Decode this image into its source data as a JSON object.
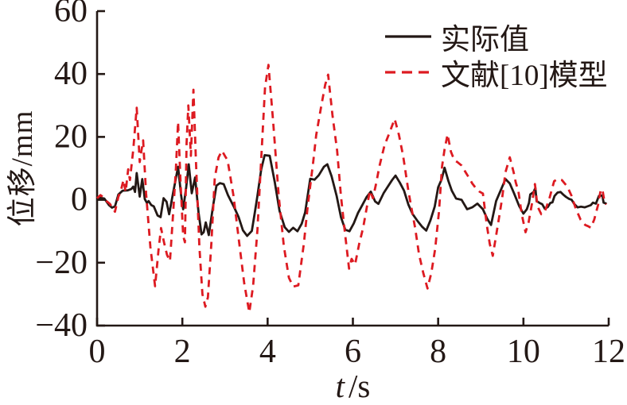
{
  "figure": {
    "background": "#ffffff",
    "axis_color": "#231815",
    "text_color": "#231815"
  },
  "chart_data": {
    "type": "line",
    "title": "",
    "xlabel": "t/s",
    "xlabel_var": "t",
    "xlabel_unit": "/s",
    "ylabel": "位移/mm",
    "xlim": [
      0,
      12
    ],
    "ylim": [
      -40,
      60
    ],
    "x_ticks": [
      0,
      2,
      4,
      6,
      8,
      10,
      12
    ],
    "y_ticks": [
      -40,
      -20,
      0,
      20,
      40,
      60
    ],
    "grid": false,
    "legend_position": "top-right",
    "series": [
      {
        "name": "实际值",
        "color": "#231815",
        "style": "solid",
        "points": [
          [
            0,
            0
          ],
          [
            0.08,
            0.6
          ],
          [
            0.17,
            0.4
          ],
          [
            0.28,
            -1.7
          ],
          [
            0.35,
            -2.5
          ],
          [
            0.42,
            -2.1
          ],
          [
            0.5,
            1.7
          ],
          [
            0.6,
            2.9
          ],
          [
            0.72,
            3
          ],
          [
            0.8,
            3.4
          ],
          [
            0.85,
            4.2
          ],
          [
            0.89,
            2.5
          ],
          [
            0.93,
            8.5
          ],
          [
            1,
            1
          ],
          [
            1.06,
            6.6
          ],
          [
            1.12,
            0.2
          ],
          [
            1.17,
            -1
          ],
          [
            1.21,
            -0.4
          ],
          [
            1.27,
            -1.7
          ],
          [
            1.33,
            -2.1
          ],
          [
            1.42,
            -5
          ],
          [
            1.49,
            -5.5
          ],
          [
            1.56,
            0.5
          ],
          [
            1.63,
            -0.6
          ],
          [
            1.69,
            -4.6
          ],
          [
            1.78,
            2
          ],
          [
            1.9,
            10.5
          ],
          [
            1.97,
            1.5
          ],
          [
            2.02,
            -3
          ],
          [
            2.09,
            4
          ],
          [
            2.15,
            11.3
          ],
          [
            2.22,
            2.1
          ],
          [
            2.3,
            7.1
          ],
          [
            2.38,
            -4
          ],
          [
            2.45,
            -11
          ],
          [
            2.5,
            -10.3
          ],
          [
            2.55,
            -7.2
          ],
          [
            2.62,
            -11.2
          ],
          [
            2.72,
            -2.1
          ],
          [
            2.8,
            4.5
          ],
          [
            2.88,
            5.3
          ],
          [
            2.97,
            5
          ],
          [
            3.07,
            1.5
          ],
          [
            3.14,
            -0.4
          ],
          [
            3.22,
            -2.5
          ],
          [
            3.32,
            -5.5
          ],
          [
            3.42,
            -9.7
          ],
          [
            3.52,
            -11.5
          ],
          [
            3.63,
            -9.9
          ],
          [
            3.7,
            -4
          ],
          [
            3.76,
            1.2
          ],
          [
            3.85,
            9.7
          ],
          [
            3.93,
            14.2
          ],
          [
            4.05,
            14
          ],
          [
            4.17,
            5.5
          ],
          [
            4.28,
            -3.5
          ],
          [
            4.4,
            -8.7
          ],
          [
            4.5,
            -10.2
          ],
          [
            4.6,
            -8.9
          ],
          [
            4.7,
            -10
          ],
          [
            4.8,
            -7.6
          ],
          [
            4.88,
            -4
          ],
          [
            5,
            6.7
          ],
          [
            5.1,
            6.4
          ],
          [
            5.2,
            7.8
          ],
          [
            5.32,
            10.5
          ],
          [
            5.4,
            11.3
          ],
          [
            5.5,
            7.5
          ],
          [
            5.62,
            1.2
          ],
          [
            5.72,
            -5.5
          ],
          [
            5.82,
            -9.5
          ],
          [
            5.92,
            -10
          ],
          [
            6.02,
            -7.5
          ],
          [
            6.12,
            -4.2
          ],
          [
            6.22,
            -1.7
          ],
          [
            6.32,
            0.8
          ],
          [
            6.42,
            2.6
          ],
          [
            6.52,
            -0.5
          ],
          [
            6.6,
            -1.3
          ],
          [
            6.72,
            2.1
          ],
          [
            6.82,
            4.2
          ],
          [
            6.92,
            6.3
          ],
          [
            7,
            7.7
          ],
          [
            7.1,
            5.5
          ],
          [
            7.2,
            2.9
          ],
          [
            7.3,
            -1.5
          ],
          [
            7.4,
            -4.5
          ],
          [
            7.52,
            -6.8
          ],
          [
            7.62,
            -8.5
          ],
          [
            7.72,
            -9.8
          ],
          [
            7.82,
            -6.5
          ],
          [
            7.92,
            -2.1
          ],
          [
            8,
            4
          ],
          [
            8.08,
            6.5
          ],
          [
            8.15,
            10.2
          ],
          [
            8.24,
            6
          ],
          [
            8.32,
            2.9
          ],
          [
            8.42,
            0.4
          ],
          [
            8.55,
            0
          ],
          [
            8.68,
            -3
          ],
          [
            8.8,
            -2.4
          ],
          [
            8.92,
            -1.2
          ],
          [
            9.05,
            -3
          ],
          [
            9.15,
            -6
          ],
          [
            9.24,
            -8
          ],
          [
            9.36,
            -0.4
          ],
          [
            9.45,
            2.5
          ],
          [
            9.58,
            6.6
          ],
          [
            9.68,
            5.2
          ],
          [
            9.78,
            2.1
          ],
          [
            9.9,
            -2
          ],
          [
            10,
            -4.4
          ],
          [
            10.08,
            -3
          ],
          [
            10.13,
            -1
          ],
          [
            10.16,
            1.7
          ],
          [
            10.24,
            2.5
          ],
          [
            10.28,
            3.8
          ],
          [
            10.31,
            -0.4
          ],
          [
            10.38,
            -1
          ],
          [
            10.44,
            -1.4
          ],
          [
            10.5,
            -2.8
          ],
          [
            10.57,
            -2.3
          ],
          [
            10.63,
            -1
          ],
          [
            10.68,
            -0.8
          ],
          [
            10.73,
            1.2
          ],
          [
            10.8,
            2.3
          ],
          [
            10.87,
            2.5
          ],
          [
            10.93,
            1.7
          ],
          [
            11,
            0.9
          ],
          [
            11.07,
            0.3
          ],
          [
            11.13,
            0
          ],
          [
            11.19,
            -1.3
          ],
          [
            11.27,
            -2.4
          ],
          [
            11.35,
            -2.2
          ],
          [
            11.44,
            -2.4
          ],
          [
            11.52,
            -2
          ],
          [
            11.58,
            -1.7
          ],
          [
            11.63,
            -0.9
          ],
          [
            11.7,
            -1.2
          ],
          [
            11.77,
            1.2
          ],
          [
            11.85,
            1.4
          ],
          [
            11.88,
            -0.9
          ],
          [
            11.95,
            -1.2
          ]
        ]
      },
      {
        "name": "文献[10]模型",
        "color": "#dd1a21",
        "style": "dashed",
        "points": [
          [
            0,
            0.5
          ],
          [
            0.08,
            1.5
          ],
          [
            0.15,
            0.8
          ],
          [
            0.22,
            -0.4
          ],
          [
            0.3,
            -1.3
          ],
          [
            0.42,
            -3.8
          ],
          [
            0.5,
            1
          ],
          [
            0.55,
            2.5
          ],
          [
            0.62,
            6.3
          ],
          [
            0.67,
            2.5
          ],
          [
            0.73,
            9.7
          ],
          [
            0.77,
            6.3
          ],
          [
            0.85,
            16
          ],
          [
            0.93,
            29.3
          ],
          [
            1,
            12
          ],
          [
            1.04,
            15.5
          ],
          [
            1.08,
            18.9
          ],
          [
            1.15,
            2
          ],
          [
            1.25,
            -15
          ],
          [
            1.36,
            -27.5
          ],
          [
            1.44,
            -16
          ],
          [
            1.5,
            -9
          ],
          [
            1.57,
            -13.5
          ],
          [
            1.64,
            -17.5
          ],
          [
            1.71,
            -19.5
          ],
          [
            1.78,
            -5
          ],
          [
            1.85,
            10
          ],
          [
            1.9,
            24.8
          ],
          [
            1.96,
            5
          ],
          [
            2.02,
            -11.5
          ],
          [
            2.06,
            -13.5
          ],
          [
            2.1,
            18
          ],
          [
            2.14,
            30
          ],
          [
            2.2,
            14
          ],
          [
            2.26,
            35
          ],
          [
            2.32,
            12
          ],
          [
            2.4,
            -15
          ],
          [
            2.47,
            -30
          ],
          [
            2.54,
            -34
          ],
          [
            2.6,
            -31
          ],
          [
            2.68,
            -14
          ],
          [
            2.76,
            7
          ],
          [
            2.85,
            13.5
          ],
          [
            2.93,
            15.6
          ],
          [
            3,
            13.9
          ],
          [
            3.06,
            12.6
          ],
          [
            3.2,
            1.2
          ],
          [
            3.32,
            -12.2
          ],
          [
            3.45,
            -26.5
          ],
          [
            3.57,
            -35.8
          ],
          [
            3.66,
            -27.4
          ],
          [
            3.76,
            -9.7
          ],
          [
            3.85,
            13
          ],
          [
            3.94,
            35.8
          ],
          [
            4.02,
            42.9
          ],
          [
            4.13,
            24.8
          ],
          [
            4.26,
            1.2
          ],
          [
            4.38,
            -14.7
          ],
          [
            4.5,
            -24.8
          ],
          [
            4.6,
            -27.6
          ],
          [
            4.72,
            -27.2
          ],
          [
            4.85,
            -13.9
          ],
          [
            4.94,
            -2.1
          ],
          [
            5.07,
            12.2
          ],
          [
            5.14,
            20.6
          ],
          [
            5.26,
            29.9
          ],
          [
            5.35,
            36.6
          ],
          [
            5.42,
            39.8
          ],
          [
            5.52,
            27
          ],
          [
            5.63,
            15.6
          ],
          [
            5.72,
            1.2
          ],
          [
            5.8,
            -8.9
          ],
          [
            5.91,
            -21.9
          ],
          [
            5.97,
            -18.8
          ],
          [
            6.05,
            -20.6
          ],
          [
            6.15,
            -13.9
          ],
          [
            6.24,
            -8.9
          ],
          [
            6.33,
            -2.1
          ],
          [
            6.4,
            2.9
          ],
          [
            6.47,
            0.5
          ],
          [
            6.55,
            5.5
          ],
          [
            6.62,
            10.5
          ],
          [
            6.74,
            17.3
          ],
          [
            6.86,
            21.4
          ],
          [
            6.98,
            25.7
          ],
          [
            7.08,
            20.6
          ],
          [
            7.18,
            13.9
          ],
          [
            7.3,
            2.9
          ],
          [
            7.38,
            -3
          ],
          [
            7.46,
            -8.9
          ],
          [
            7.55,
            -17.3
          ],
          [
            7.65,
            -23.2
          ],
          [
            7.75,
            -28.2
          ],
          [
            7.84,
            -23.2
          ],
          [
            7.93,
            -15.6
          ],
          [
            8.02,
            -3.8
          ],
          [
            8.09,
            10.5
          ],
          [
            8.15,
            16
          ],
          [
            8.22,
            20.8
          ],
          [
            8.3,
            15.3
          ],
          [
            8.38,
            12.6
          ],
          [
            8.45,
            12
          ],
          [
            8.55,
            10.9
          ],
          [
            8.65,
            8.6
          ],
          [
            8.72,
            7.1
          ],
          [
            8.8,
            5.2
          ],
          [
            8.88,
            3.8
          ],
          [
            8.97,
            2.6
          ],
          [
            9.05,
            2
          ],
          [
            9.14,
            -8
          ],
          [
            9.21,
            -14
          ],
          [
            9.28,
            -17.8
          ],
          [
            9.36,
            -11.4
          ],
          [
            9.45,
            -3.8
          ],
          [
            9.5,
            0.4
          ],
          [
            9.58,
            8.8
          ],
          [
            9.68,
            13.5
          ],
          [
            9.77,
            8.8
          ],
          [
            9.82,
            5.5
          ],
          [
            9.88,
            2.9
          ],
          [
            9.96,
            -4.6
          ],
          [
            10.05,
            -10.3
          ],
          [
            10.12,
            -7.2
          ],
          [
            10.2,
            -1.3
          ],
          [
            10.27,
            5
          ],
          [
            10.33,
            -2.1
          ],
          [
            10.42,
            -4.6
          ],
          [
            10.5,
            -3.8
          ],
          [
            10.6,
            0
          ],
          [
            10.72,
            5.9
          ],
          [
            10.8,
            6.6
          ],
          [
            10.9,
            6.3
          ],
          [
            11.03,
            4.2
          ],
          [
            11.13,
            1.2
          ],
          [
            11.22,
            -2.5
          ],
          [
            11.34,
            -6.3
          ],
          [
            11.45,
            -8
          ],
          [
            11.52,
            -8.4
          ],
          [
            11.58,
            -8.9
          ],
          [
            11.66,
            -6.3
          ],
          [
            11.75,
            -1.7
          ],
          [
            11.81,
            2.9
          ],
          [
            11.85,
            3.4
          ],
          [
            11.9,
            -0.5
          ],
          [
            11.94,
            -1.5
          ]
        ]
      }
    ]
  }
}
